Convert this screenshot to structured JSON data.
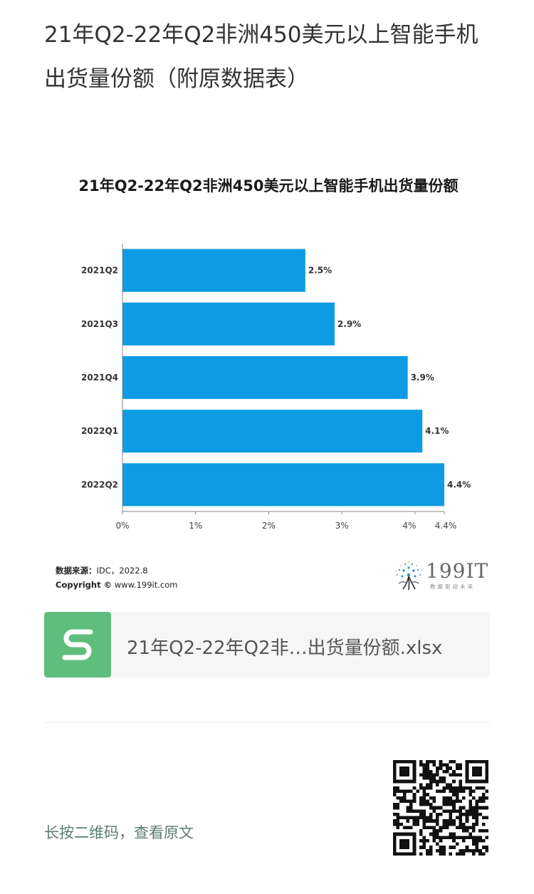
{
  "article": {
    "title": "21年Q2-22年Q2非洲450美元以上智能手机出货量份额（附原数据表）"
  },
  "chart_data": {
    "type": "bar",
    "orientation": "horizontal",
    "title": "21年Q2-22年Q2非洲450美元以上智能手机出货量份额",
    "categories": [
      "2021Q2",
      "2021Q3",
      "2021Q4",
      "2022Q1",
      "2022Q2"
    ],
    "values": [
      2.5,
      2.9,
      3.9,
      4.1,
      4.4
    ],
    "value_labels": [
      "2.5%",
      "2.9%",
      "3.9%",
      "4.1%",
      "4.4%"
    ],
    "xlim": [
      0,
      4.4
    ],
    "xticks": [
      0,
      1,
      2,
      3,
      4,
      4.4
    ],
    "xtick_labels": [
      "0%",
      "1%",
      "2%",
      "3%",
      "4%",
      "4.4%"
    ],
    "xlabel": "",
    "ylabel": "",
    "grid": false,
    "bar_color": "#0d9be3"
  },
  "source": {
    "label": "数据来源：",
    "text": "IDC，2022.8",
    "copyright_label": "Copyright ©",
    "copyright_text": " www.199it.com"
  },
  "logo": {
    "name": "199IT",
    "tagline": "数据驱动未来"
  },
  "attachment": {
    "file_name": "21年Q2-22年Q2非…出货量份额.xlsx",
    "icon": "spreadsheet-s-icon",
    "icon_color": "#5fbe7e"
  },
  "footer": {
    "qr_prompt": "长按二维码，查看原文"
  }
}
